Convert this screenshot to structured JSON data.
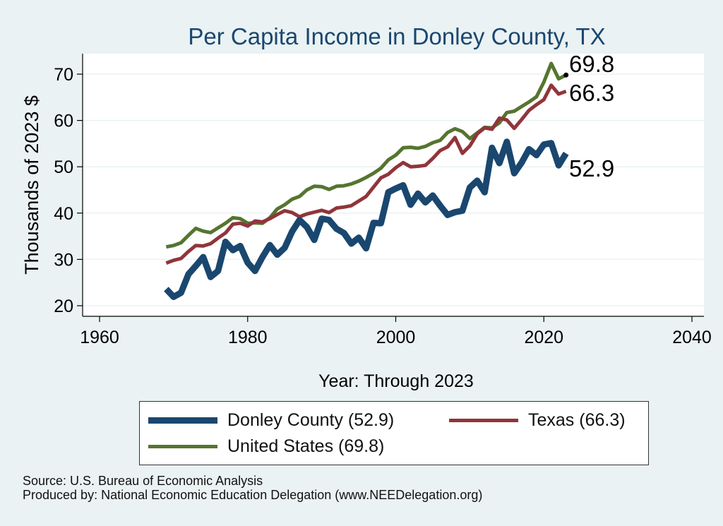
{
  "chart_data": {
    "type": "line",
    "title": "Per Capita Income in Donley County, TX",
    "xlabel": "Year: Through 2023",
    "ylabel": "Thousands of 2023 $",
    "xlim": [
      1960,
      2040
    ],
    "ylim": [
      20,
      75
    ],
    "xticks": [
      1960,
      1980,
      2000,
      2020,
      2040
    ],
    "yticks": [
      20,
      30,
      40,
      50,
      60,
      70
    ],
    "grid": "horizontal",
    "x": [
      1969,
      1970,
      1971,
      1972,
      1973,
      1974,
      1975,
      1976,
      1977,
      1978,
      1979,
      1980,
      1981,
      1982,
      1983,
      1984,
      1985,
      1986,
      1987,
      1988,
      1989,
      1990,
      1991,
      1992,
      1993,
      1994,
      1995,
      1996,
      1997,
      1998,
      1999,
      2000,
      2001,
      2002,
      2003,
      2004,
      2005,
      2006,
      2007,
      2008,
      2009,
      2010,
      2011,
      2012,
      2013,
      2014,
      2015,
      2016,
      2017,
      2018,
      2019,
      2020,
      2021,
      2022,
      2023
    ],
    "series": [
      {
        "name": "Donley County",
        "color": "#1a476f",
        "values": [
          23.6,
          21.9,
          22.8,
          26.8,
          28.6,
          30.5,
          26.2,
          27.5,
          33.8,
          32.0,
          32.9,
          29.3,
          27.5,
          30.5,
          33.1,
          31.0,
          32.5,
          36.0,
          38.5,
          37.0,
          34.2,
          38.8,
          38.5,
          36.6,
          35.7,
          33.4,
          34.7,
          32.4,
          37.9,
          37.8,
          44.5,
          45.3,
          46.0,
          41.8,
          44.2,
          42.3,
          43.8,
          41.6,
          39.6,
          40.2,
          40.5,
          45.5,
          47.0,
          44.5,
          54.1,
          50.8,
          55.4,
          48.6,
          50.9,
          53.8,
          52.5,
          54.8,
          55.1,
          50.3,
          52.9
        ]
      },
      {
        "name": "Texas",
        "color": "#90353b",
        "values": [
          29.2,
          29.8,
          30.2,
          31.7,
          33.0,
          32.9,
          33.4,
          34.6,
          35.7,
          37.6,
          37.8,
          37.2,
          38.3,
          38.1,
          38.8,
          39.7,
          40.5,
          40.1,
          39.2,
          39.8,
          40.2,
          40.6,
          40.1,
          41.1,
          41.3,
          41.6,
          42.6,
          43.6,
          45.6,
          47.6,
          48.4,
          49.8,
          50.9,
          50.0,
          50.1,
          50.3,
          51.8,
          53.5,
          54.3,
          56.3,
          52.9,
          54.5,
          57.1,
          58.4,
          58.1,
          60.5,
          60.1,
          58.3,
          60.2,
          62.2,
          63.4,
          64.5,
          67.6,
          65.7,
          66.3
        ]
      },
      {
        "name": "United States",
        "color": "#55752f",
        "values": [
          32.7,
          33.0,
          33.6,
          35.2,
          36.7,
          36.1,
          35.8,
          36.8,
          37.8,
          39.0,
          38.8,
          37.8,
          37.9,
          37.8,
          39.0,
          40.9,
          41.8,
          43.0,
          43.6,
          45.0,
          45.8,
          45.7,
          45.1,
          45.8,
          45.9,
          46.3,
          46.9,
          47.7,
          48.6,
          49.7,
          51.5,
          52.5,
          54.1,
          54.2,
          54.0,
          54.4,
          55.2,
          55.7,
          57.4,
          58.2,
          57.6,
          56.1,
          57.3,
          58.5,
          58.4,
          59.5,
          61.7,
          62.0,
          63.0,
          64.0,
          65.1,
          68.3,
          72.3,
          69.0,
          69.8
        ]
      }
    ],
    "end_labels": [
      "69.8",
      "66.3",
      "52.9"
    ],
    "legend": {
      "position": "bottom",
      "items": [
        "Donley County (52.9)",
        "Texas (66.3)",
        "United States (69.8)"
      ]
    }
  },
  "footer": {
    "source": "Source: U.S. Bureau of Economic Analysis",
    "produced_by": "Produced by: National Economic Education Delegation (www.NEEDelegation.org)"
  }
}
